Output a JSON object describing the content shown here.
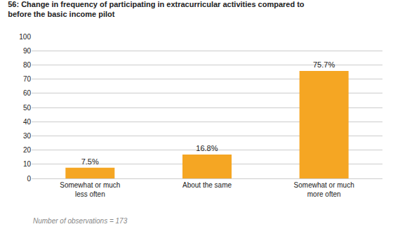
{
  "chart_data": {
    "type": "bar",
    "title": "56: Change in frequency of participating in extracurricular activities compared to\nbefore the basic income pilot",
    "categories": [
      "Somewhat or much\nless often",
      "About the same",
      "Somewhat or much\nmore often"
    ],
    "values": [
      7.5,
      16.8,
      75.7
    ],
    "value_labels": [
      "7.5%",
      "16.8%",
      "75.7%"
    ],
    "data_labels": true,
    "color": "#F5A623",
    "ylim": [
      0,
      100
    ],
    "yticks": [
      0,
      10,
      20,
      30,
      40,
      50,
      60,
      70,
      80,
      90,
      100
    ],
    "grid": true,
    "annotations": [
      "Number of observations = 173"
    ]
  }
}
